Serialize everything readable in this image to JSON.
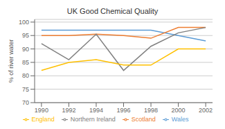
{
  "chart_data": {
    "type": "line",
    "title": "UK Good Chemical Quality",
    "ylabel": "% of river water",
    "x": [
      1990,
      1992,
      1994,
      1996,
      1998,
      2000,
      2002
    ],
    "series": [
      {
        "name": "Wales",
        "color": "#5b9bd5",
        "values": [
          97,
          97,
          97,
          97,
          97,
          95,
          93
        ]
      },
      {
        "name": "Scotland",
        "color": "#ed7d31",
        "values": [
          95,
          95,
          95.5,
          95,
          94,
          98,
          98
        ]
      },
      {
        "name": "Northern Ireland",
        "color": "#808080",
        "values": [
          92,
          86,
          95.5,
          82,
          91,
          96,
          98
        ]
      },
      {
        "name": "England",
        "color": "#ffc000",
        "values": [
          82,
          85,
          86,
          84,
          84,
          90,
          90
        ]
      }
    ],
    "xlim": [
      1989.5,
      2002.5
    ],
    "xticks": [
      1990,
      1992,
      1994,
      1996,
      1998,
      2000,
      2002
    ],
    "ylim": [
      70,
      101
    ],
    "yticks": [
      70,
      75,
      80,
      85,
      90,
      95,
      100
    ],
    "grid": true,
    "legend": "bottom"
  }
}
